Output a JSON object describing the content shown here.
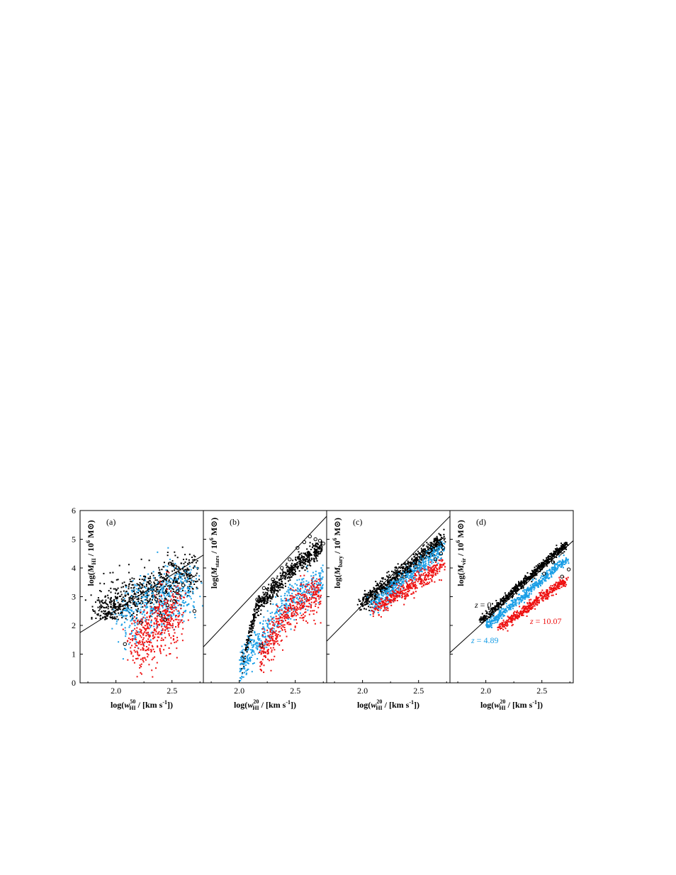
{
  "chart_data": [
    {
      "type": "scatter",
      "panel_label": "(a)",
      "ylabel_parts": {
        "pre": "log(M",
        "sub": "HI",
        "post": " / 10",
        "sup": "6",
        "post2": " M",
        "sym": "⊙",
        "end": ")"
      },
      "xlabel_parts": {
        "pre": "log(w",
        "sup": "50",
        "sub": "HI",
        "post": " / [km s",
        "sup2": "-1",
        "end": "])"
      },
      "xlim": [
        1.68,
        2.78
      ],
      "ylim": [
        0,
        6
      ],
      "xticks": [
        "2.0",
        "2.5"
      ],
      "yticks": [
        "0",
        "1",
        "2",
        "3",
        "4",
        "5",
        "6"
      ],
      "fit_line": [
        [
          1.68,
          1.75
        ],
        [
          2.78,
          4.45
        ]
      ],
      "series": [
        {
          "color": "#000000",
          "center_x": [
            1.85,
            2.7
          ],
          "center_y": [
            2.55,
            3.85
          ],
          "spread": 0.38,
          "low_mass_floor": 2.2,
          "count": 700
        },
        {
          "color": "#1a9ee6",
          "center_x": [
            2.05,
            2.7
          ],
          "center_y": [
            2.3,
            3.3
          ],
          "spread": 0.55,
          "count": 450
        },
        {
          "color": "#ee1111",
          "center_x": [
            2.15,
            2.55
          ],
          "center_y": [
            1.3,
            2.5
          ],
          "spread": 0.55,
          "count": 450
        }
      ],
      "open_circles": [
        [
          2.08,
          1.35
        ],
        [
          2.22,
          2.1
        ],
        [
          2.4,
          2.35
        ],
        [
          2.46,
          2.7
        ],
        [
          2.52,
          2.85
        ],
        [
          2.55,
          3.2
        ],
        [
          2.6,
          3.4
        ],
        [
          2.62,
          3.9
        ],
        [
          2.67,
          3.7
        ],
        [
          2.7,
          2.5
        ],
        [
          2.48,
          4.15
        ],
        [
          2.55,
          4.0
        ],
        [
          2.3,
          3.5
        ],
        [
          2.44,
          2.2
        ],
        [
          2.36,
          2.9
        ]
      ]
    },
    {
      "type": "scatter",
      "panel_label": "(b)",
      "ylabel_parts": {
        "pre": "log(M",
        "sub": "stars",
        "post": " / 10",
        "sup": "6",
        "post2": " M",
        "sym": "⊙",
        "end": ")"
      },
      "xlabel_parts": {
        "pre": "log(w",
        "sup": "20",
        "sub": "HI",
        "post": " / [km s",
        "sup2": "-1",
        "end": "])"
      },
      "xlim": [
        1.68,
        2.78
      ],
      "ylim": [
        0,
        6
      ],
      "xticks": [
        "2.0",
        "2.5"
      ],
      "yticks": [],
      "fit_line": [
        [
          1.68,
          1.25
        ],
        [
          2.78,
          5.8
        ]
      ],
      "series": [
        {
          "color": "#000000",
          "curve": "b_black",
          "count": 650
        },
        {
          "color": "#1a9ee6",
          "curve": "b_blue",
          "count": 500
        },
        {
          "color": "#ee1111",
          "curve": "b_red",
          "count": 450
        }
      ],
      "open_circles": [
        [
          2.12,
          2.0
        ],
        [
          2.16,
          2.9
        ],
        [
          2.22,
          3.3
        ],
        [
          2.3,
          3.6
        ],
        [
          2.38,
          4.0
        ],
        [
          2.45,
          4.3
        ],
        [
          2.52,
          4.7
        ],
        [
          2.58,
          4.9
        ],
        [
          2.63,
          5.1
        ],
        [
          2.68,
          5.0
        ],
        [
          2.72,
          4.95
        ],
        [
          2.75,
          4.85
        ],
        [
          2.2,
          1.3
        ],
        [
          2.48,
          3.8
        ]
      ]
    },
    {
      "type": "scatter",
      "panel_label": "(c)",
      "ylabel_parts": {
        "pre": "log(M",
        "sub": "bary",
        "post": " / 10",
        "sup": "6",
        "post2": " M",
        "sym": "⊙",
        "end": ")"
      },
      "xlabel_parts": {
        "pre": "log(w",
        "sup": "20",
        "sub": "HI",
        "post": " / [km s",
        "sup2": "-1",
        "end": "])"
      },
      "xlim": [
        1.68,
        2.78
      ],
      "ylim": [
        0,
        6
      ],
      "xticks": [
        "2.0",
        "2.5"
      ],
      "yticks": [],
      "fit_line": [
        [
          1.68,
          1.45
        ],
        [
          2.78,
          5.8
        ]
      ],
      "series": [
        {
          "color": "#000000",
          "line_x": [
            1.98,
            2.72
          ],
          "line_y": [
            2.7,
            5.0
          ],
          "spread": 0.14,
          "count": 750
        },
        {
          "color": "#1a9ee6",
          "line_x": [
            2.08,
            2.72
          ],
          "line_y": [
            2.6,
            4.7
          ],
          "spread": 0.16,
          "count": 450
        },
        {
          "color": "#ee1111",
          "line_x": [
            2.1,
            2.72
          ],
          "line_y": [
            2.5,
            4.1
          ],
          "spread": 0.16,
          "count": 400
        }
      ],
      "open_circles": [
        [
          2.3,
          3.8
        ],
        [
          2.4,
          4.1
        ],
        [
          2.48,
          4.4
        ],
        [
          2.55,
          4.6
        ],
        [
          2.62,
          4.8
        ],
        [
          2.68,
          4.9
        ],
        [
          2.72,
          4.7
        ],
        [
          2.7,
          4.5
        ],
        [
          2.65,
          4.3
        ]
      ]
    },
    {
      "type": "scatter",
      "panel_label": "(d)",
      "ylabel_parts": {
        "pre": "log(M",
        "sub": "vir",
        "post": " / 10",
        "sup": "6",
        "post2": " M",
        "sym": "⊙",
        "end": ")"
      },
      "xlabel_parts": {
        "pre": "log(w",
        "sup": "20",
        "sub": "HI",
        "post": " / [km s",
        "sup2": "-1",
        "end": "])"
      },
      "xlim": [
        1.68,
        2.78
      ],
      "ylim": [
        0,
        6
      ],
      "xticks": [
        "2.0",
        "2.5"
      ],
      "yticks": [],
      "fit_line": [
        [
          1.68,
          1.05
        ],
        [
          2.78,
          4.95
        ]
      ],
      "series": [
        {
          "color": "#000000",
          "line_x": [
            1.95,
            2.72
          ],
          "line_y": [
            2.15,
            4.85
          ],
          "spread": 0.06,
          "count": 650
        },
        {
          "color": "#1a9ee6",
          "line_x": [
            2.0,
            2.72
          ],
          "line_y": [
            1.95,
            4.3
          ],
          "spread": 0.07,
          "count": 500
        },
        {
          "color": "#ee1111",
          "line_x": [
            2.12,
            2.72
          ],
          "line_y": [
            1.9,
            3.6
          ],
          "spread": 0.08,
          "count": 450
        }
      ],
      "open_circles": [
        [
          2.52,
          3.8
        ],
        [
          2.6,
          4.2
        ],
        [
          2.66,
          4.5
        ],
        [
          2.7,
          4.7
        ],
        [
          2.74,
          3.95
        ],
        [
          2.68,
          3.7
        ]
      ],
      "annotations": [
        {
          "label": "z = 0",
          "italic_part": "z",
          "rest": " = 0",
          "color": "#000000"
        },
        {
          "label": "z = 4.89",
          "italic_part": "z",
          "rest": " = 4.89",
          "color": "#1a9ee6"
        },
        {
          "label": "z = 10.07",
          "italic_part": "z",
          "rest": " = 10.07",
          "color": "#ee1111"
        }
      ]
    }
  ]
}
